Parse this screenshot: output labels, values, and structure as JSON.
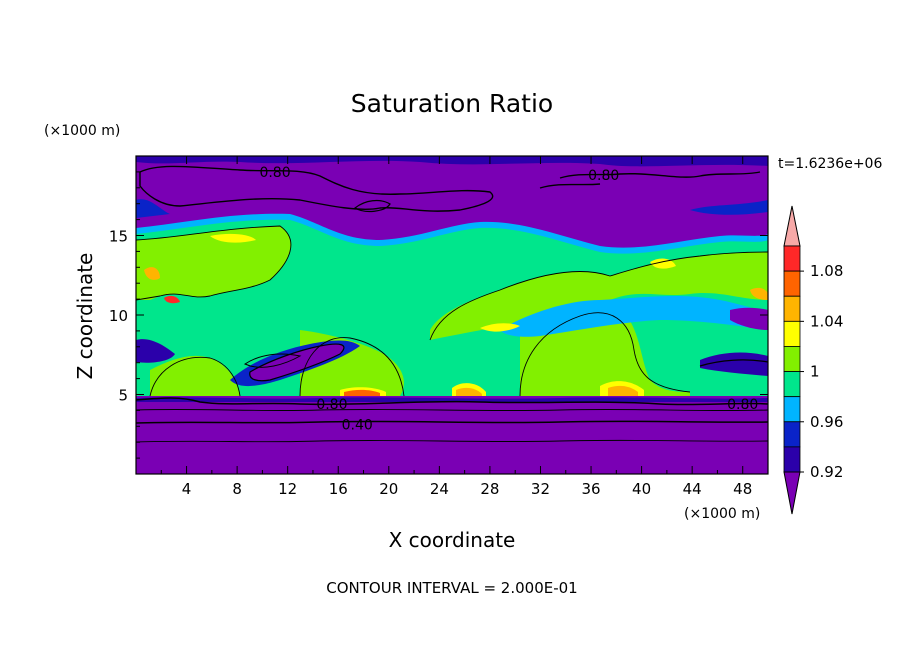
{
  "chart_data": {
    "type": "heatmap",
    "title": "Saturation Ratio",
    "xlabel": "X coordinate",
    "ylabel": "Z coordinate",
    "x_unit": "(×1000 m)",
    "y_unit": "(×1000 m)",
    "time_label": "t=1.6236e+06",
    "footer": "CONTOUR INTERVAL = 2.000E-01",
    "xlim": [
      0,
      50
    ],
    "ylim": [
      0,
      20
    ],
    "x_ticks": [
      4,
      8,
      12,
      16,
      20,
      24,
      28,
      32,
      36,
      40,
      44,
      48
    ],
    "y_ticks": [
      5,
      10,
      15
    ],
    "colorbar": {
      "levels": [
        0.92,
        0.94,
        0.96,
        0.98,
        1.0,
        1.02,
        1.04,
        1.06,
        1.08,
        1.1
      ],
      "tick_labels": [
        "0.92",
        "0.96",
        "1",
        "1.04",
        "1.08"
      ],
      "colors": [
        "#7a00b4",
        "#2b00aa",
        "#0a23c8",
        "#00b4ff",
        "#00e68c",
        "#82f000",
        "#ffff00",
        "#ffb400",
        "#ff6400",
        "#ff2828",
        "#f7a9a8"
      ]
    },
    "contour_labels": [
      {
        "text": "0.80",
        "x": 11,
        "z": 19.0
      },
      {
        "text": "0.80",
        "x": 37,
        "z": 18.8
      },
      {
        "text": "0.80",
        "x": 15.5,
        "z": 4.4
      },
      {
        "text": "0.80",
        "x": 48,
        "z": 4.4
      },
      {
        "text": "0.40",
        "x": 17.5,
        "z": 3.1
      }
    ]
  }
}
